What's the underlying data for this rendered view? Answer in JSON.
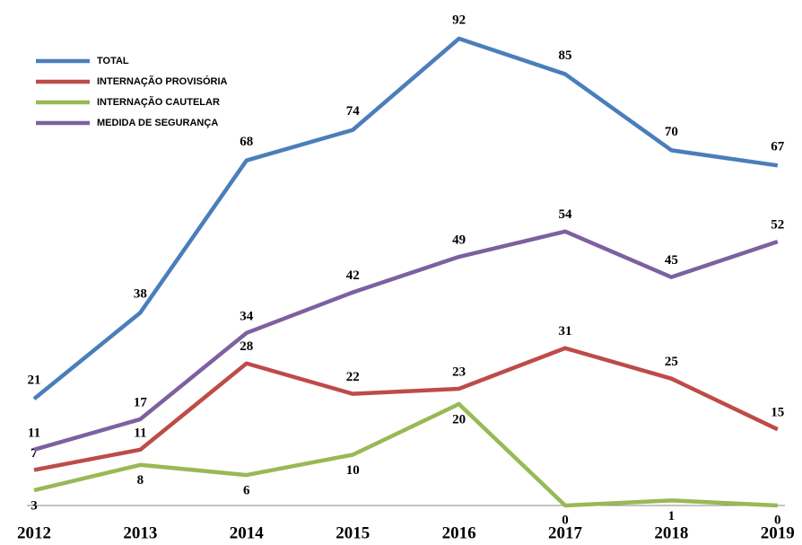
{
  "chart_data": {
    "type": "line",
    "categories": [
      "2012",
      "2013",
      "2014",
      "2015",
      "2016",
      "2017",
      "2018",
      "2019"
    ],
    "series": [
      {
        "name": "TOTAL",
        "color": "#4a7ebb",
        "values": [
          21,
          38,
          68,
          74,
          92,
          85,
          70,
          67
        ]
      },
      {
        "name": "INTERNAÇÃO PROVISÓRIA",
        "color": "#be4b48",
        "values": [
          7,
          11,
          28,
          22,
          23,
          31,
          25,
          15
        ]
      },
      {
        "name": "INTERNAÇÃO CAUTELAR",
        "color": "#98b954",
        "values": [
          3,
          8,
          6,
          10,
          20,
          0,
          1,
          0
        ]
      },
      {
        "name": "MEDIDA DE SEGURANÇA",
        "color": "#7d60a0",
        "values": [
          11,
          17,
          34,
          42,
          49,
          54,
          45,
          52
        ]
      }
    ],
    "ylim": [
      0,
      92
    ],
    "legend": "upper left"
  }
}
